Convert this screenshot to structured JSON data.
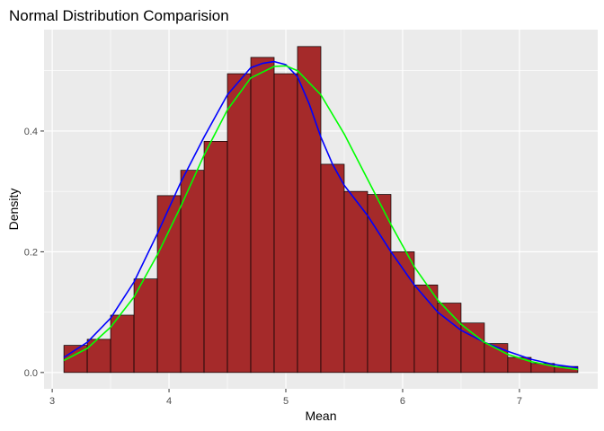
{
  "chart_data": {
    "type": "bar",
    "title": "Normal Distribution Comparision",
    "xlabel": "Mean",
    "ylabel": "Density",
    "xlim": [
      2.93,
      7.67
    ],
    "ylim": [
      -0.027,
      0.568
    ],
    "x_ticks": [
      3,
      4,
      5,
      6,
      7
    ],
    "y_ticks": [
      0.0,
      0.2,
      0.4
    ],
    "x_tick_labels": [
      "3",
      "4",
      "5",
      "6",
      "7"
    ],
    "y_tick_labels": [
      "0.0",
      "0.2",
      "0.4"
    ],
    "grid": true,
    "colors": {
      "panel_background": "#ebebeb",
      "grid": "#ffffff",
      "bar_fill": "#a52a2a",
      "bar_outline": "#000000",
      "density_curve": "#0000ff",
      "normal_curve": "#00ff00"
    },
    "histogram": {
      "bin_width": 0.2,
      "bins": [
        {
          "x0": 3.1,
          "x1": 3.3,
          "density": 0.045
        },
        {
          "x0": 3.3,
          "x1": 3.5,
          "density": 0.055
        },
        {
          "x0": 3.5,
          "x1": 3.7,
          "density": 0.095
        },
        {
          "x0": 3.7,
          "x1": 3.9,
          "density": 0.155
        },
        {
          "x0": 3.9,
          "x1": 4.1,
          "density": 0.293
        },
        {
          "x0": 4.1,
          "x1": 4.3,
          "density": 0.335
        },
        {
          "x0": 4.3,
          "x1": 4.5,
          "density": 0.383
        },
        {
          "x0": 4.5,
          "x1": 4.7,
          "density": 0.495
        },
        {
          "x0": 4.7,
          "x1": 4.9,
          "density": 0.522
        },
        {
          "x0": 4.9,
          "x1": 5.1,
          "density": 0.495
        },
        {
          "x0": 5.1,
          "x1": 5.3,
          "density": 0.54
        },
        {
          "x0": 5.3,
          "x1": 5.5,
          "density": 0.345
        },
        {
          "x0": 5.5,
          "x1": 5.7,
          "density": 0.3
        },
        {
          "x0": 5.7,
          "x1": 5.9,
          "density": 0.295
        },
        {
          "x0": 5.9,
          "x1": 6.1,
          "density": 0.2
        },
        {
          "x0": 6.1,
          "x1": 6.3,
          "density": 0.145
        },
        {
          "x0": 6.3,
          "x1": 6.5,
          "density": 0.115
        },
        {
          "x0": 6.5,
          "x1": 6.7,
          "density": 0.082
        },
        {
          "x0": 6.7,
          "x1": 6.9,
          "density": 0.048
        },
        {
          "x0": 6.9,
          "x1": 7.1,
          "density": 0.025
        },
        {
          "x0": 7.1,
          "x1": 7.3,
          "density": 0.015
        },
        {
          "x0": 7.3,
          "x1": 7.5,
          "density": 0.01
        }
      ]
    },
    "series": [
      {
        "type": "line",
        "color": "#0000ff",
        "x": [
          3.1,
          3.3,
          3.5,
          3.7,
          3.9,
          4.1,
          4.3,
          4.5,
          4.7,
          4.8,
          4.9,
          5.0,
          5.1,
          5.2,
          5.3,
          5.4,
          5.5,
          5.7,
          5.9,
          6.1,
          6.3,
          6.5,
          6.7,
          6.9,
          7.1,
          7.3,
          7.5
        ],
        "y": [
          0.025,
          0.05,
          0.09,
          0.15,
          0.23,
          0.315,
          0.39,
          0.46,
          0.505,
          0.512,
          0.515,
          0.51,
          0.49,
          0.445,
          0.39,
          0.345,
          0.31,
          0.26,
          0.2,
          0.145,
          0.1,
          0.07,
          0.05,
          0.035,
          0.022,
          0.013,
          0.008
        ]
      },
      {
        "type": "line",
        "color": "#00ff00",
        "x": [
          3.1,
          3.3,
          3.5,
          3.7,
          3.9,
          4.1,
          4.3,
          4.5,
          4.7,
          4.9,
          5.0,
          5.1,
          5.3,
          5.5,
          5.7,
          5.9,
          6.1,
          6.3,
          6.5,
          6.7,
          6.9,
          7.1,
          7.3,
          7.5
        ],
        "y": [
          0.02,
          0.04,
          0.075,
          0.125,
          0.195,
          0.275,
          0.36,
          0.435,
          0.488,
          0.507,
          0.508,
          0.5,
          0.46,
          0.395,
          0.32,
          0.245,
          0.175,
          0.12,
          0.08,
          0.05,
          0.03,
          0.018,
          0.01,
          0.005
        ]
      }
    ]
  }
}
